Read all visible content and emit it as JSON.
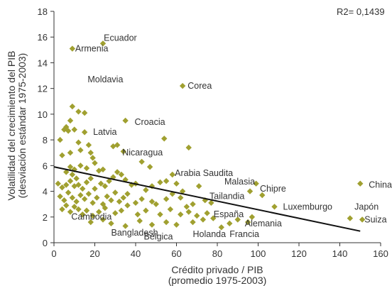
{
  "chart_data": {
    "type": "scatter",
    "xlabel": "Crédito privado / PIB",
    "xlabel2": "(promedio 1975-2003)",
    "ylabel": "Volatilidad del crecimiento del PIB",
    "ylabel2": "(desviación estándar 1975-2003)",
    "annotation": "R2= 0,1439",
    "xlim": [
      0,
      160
    ],
    "ylim": [
      0,
      18
    ],
    "xticks": [
      0,
      20,
      40,
      60,
      80,
      100,
      120,
      140,
      160
    ],
    "yticks": [
      0,
      2,
      4,
      6,
      8,
      10,
      12,
      14,
      16,
      18
    ],
    "marker_color": "#a0a030",
    "trend_color": "#111111",
    "trendline": {
      "x": [
        0,
        150
      ],
      "y": [
        5.9,
        0.9
      ]
    },
    "labels": [
      {
        "text": "Ecuador",
        "x": 23,
        "y": 15.5
      },
      {
        "text": "Armenia",
        "x": 9,
        "y": 15.1
      },
      {
        "text": "Corea",
        "x": 62,
        "y": 12.2
      },
      {
        "text": "Moldavia",
        "x": 13,
        "y": 10.6
      },
      {
        "text": "Croacia",
        "x": 36,
        "y": 9.4
      },
      {
        "text": "Latvia",
        "x": 15,
        "y": 8.6
      },
      {
        "text": "Nicaragua",
        "x": 30,
        "y": 7.0
      },
      {
        "text": "Arabia Saudita",
        "x": 55,
        "y": 5.2
      },
      {
        "text": "Malasia",
        "x": 80,
        "y": 4.2
      },
      {
        "text": "Chipre",
        "x": 96,
        "y": 4.2
      },
      {
        "text": "China",
        "x": 150,
        "y": 4.5
      },
      {
        "text": "Tailandia",
        "x": 72,
        "y": 3.5
      },
      {
        "text": "Luxemburgo",
        "x": 108,
        "y": 2.8
      },
      {
        "text": "Japón",
        "x": 143,
        "y": 2.8
      },
      {
        "text": "Cambodia",
        "x": 5,
        "y": 1.8
      },
      {
        "text": "España",
        "x": 74,
        "y": 2.2
      },
      {
        "text": "Suiza",
        "x": 150,
        "y": 1.8
      },
      {
        "text": "Alemania",
        "x": 90,
        "y": 1.5
      },
      {
        "text": "Bangladesh",
        "x": 28,
        "y": 1.1
      },
      {
        "text": "Bélgica",
        "x": 44,
        "y": 0.9
      },
      {
        "text": "Holanda",
        "x": 68,
        "y": 1.0
      },
      {
        "text": "Francia",
        "x": 86,
        "y": 1.0
      }
    ],
    "points": [
      [
        9,
        15.1
      ],
      [
        24,
        15.5
      ],
      [
        63,
        12.2
      ],
      [
        9,
        10.6
      ],
      [
        12,
        10.2
      ],
      [
        15,
        10.1
      ],
      [
        3,
        8.0
      ],
      [
        5,
        8.8
      ],
      [
        6,
        9.0
      ],
      [
        7,
        8.7
      ],
      [
        8,
        9.5
      ],
      [
        10,
        8.8
      ],
      [
        15,
        8.6
      ],
      [
        35,
        9.5
      ],
      [
        54,
        8.1
      ],
      [
        66,
        7.4
      ],
      [
        4,
        6.8
      ],
      [
        8,
        7.0
      ],
      [
        12,
        7.8
      ],
      [
        13,
        7.2
      ],
      [
        17,
        7.6
      ],
      [
        18,
        7.0
      ],
      [
        19,
        6.6
      ],
      [
        29,
        7.5
      ],
      [
        31,
        7.6
      ],
      [
        34,
        7.1
      ],
      [
        6,
        5.5
      ],
      [
        8,
        5.9
      ],
      [
        9,
        5.3
      ],
      [
        10,
        5.7
      ],
      [
        13,
        6.0
      ],
      [
        16,
        5.8
      ],
      [
        20,
        6.2
      ],
      [
        22,
        5.6
      ],
      [
        24,
        5.7
      ],
      [
        43,
        6.3
      ],
      [
        47,
        5.9
      ],
      [
        2,
        4.6
      ],
      [
        4,
        4.3
      ],
      [
        6,
        4.5
      ],
      [
        8,
        4.8
      ],
      [
        10,
        4.4
      ],
      [
        11,
        5.0
      ],
      [
        12,
        4.5
      ],
      [
        14,
        4.2
      ],
      [
        16,
        4.7
      ],
      [
        18,
        5.0
      ],
      [
        20,
        4.2
      ],
      [
        23,
        4.6
      ],
      [
        25,
        4.4
      ],
      [
        27,
        4.8
      ],
      [
        29,
        5.1
      ],
      [
        31,
        5.5
      ],
      [
        33,
        5.3
      ],
      [
        35,
        4.9
      ],
      [
        38,
        4.5
      ],
      [
        40,
        4.6
      ],
      [
        45,
        4.1
      ],
      [
        48,
        4.4
      ],
      [
        52,
        4.7
      ],
      [
        55,
        4.8
      ],
      [
        58,
        5.3
      ],
      [
        60,
        4.6
      ],
      [
        63,
        4.0
      ],
      [
        71,
        4.4
      ],
      [
        96,
        4.0
      ],
      [
        99,
        4.6
      ],
      [
        102,
        3.7
      ],
      [
        150,
        4.6
      ],
      [
        3,
        3.6
      ],
      [
        5,
        3.3
      ],
      [
        7,
        3.9
      ],
      [
        9,
        3.5
      ],
      [
        11,
        3.2
      ],
      [
        13,
        3.7
      ],
      [
        15,
        3.4
      ],
      [
        17,
        3.8
      ],
      [
        19,
        3.1
      ],
      [
        21,
        3.5
      ],
      [
        24,
        3.0
      ],
      [
        26,
        3.6
      ],
      [
        28,
        3.3
      ],
      [
        30,
        3.9
      ],
      [
        32,
        3.2
      ],
      [
        34,
        3.5
      ],
      [
        36,
        3.8
      ],
      [
        40,
        3.1
      ],
      [
        43,
        3.4
      ],
      [
        48,
        3.2
      ],
      [
        50,
        3.0
      ],
      [
        55,
        3.4
      ],
      [
        58,
        3.8
      ],
      [
        62,
        3.5
      ],
      [
        65,
        2.8
      ],
      [
        68,
        3.0
      ],
      [
        74,
        3.3
      ],
      [
        77,
        3.1
      ],
      [
        4,
        2.6
      ],
      [
        6,
        2.9
      ],
      [
        8,
        2.4
      ],
      [
        10,
        2.8
      ],
      [
        12,
        2.6
      ],
      [
        14,
        2.2
      ],
      [
        16,
        2.5
      ],
      [
        19,
        2.1
      ],
      [
        22,
        2.4
      ],
      [
        25,
        2.7
      ],
      [
        30,
        2.3
      ],
      [
        33,
        2.5
      ],
      [
        36,
        2.9
      ],
      [
        41,
        2.2
      ],
      [
        45,
        2.5
      ],
      [
        52,
        2.2
      ],
      [
        57,
        2.6
      ],
      [
        62,
        2.2
      ],
      [
        66,
        2.4
      ],
      [
        70,
        2.1
      ],
      [
        75,
        2.3
      ],
      [
        108,
        2.8
      ],
      [
        145,
        1.9
      ],
      [
        151,
        1.8
      ],
      [
        18,
        1.6
      ],
      [
        24,
        1.8
      ],
      [
        28,
        1.5
      ],
      [
        35,
        1.3
      ],
      [
        42,
        1.7
      ],
      [
        48,
        1.4
      ],
      [
        55,
        1.6
      ],
      [
        60,
        1.4
      ],
      [
        68,
        1.6
      ],
      [
        73,
        1.8
      ],
      [
        78,
        1.9
      ],
      [
        82,
        1.2
      ],
      [
        86,
        1.5
      ],
      [
        90,
        1.8
      ],
      [
        95,
        1.6
      ],
      [
        97,
        2.0
      ]
    ]
  }
}
